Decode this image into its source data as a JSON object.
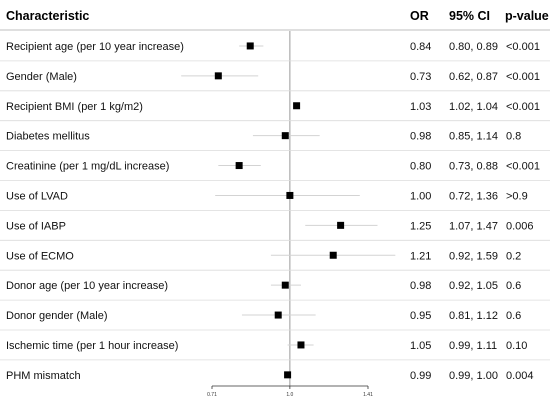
{
  "chart_data": {
    "type": "forest",
    "headers": {
      "characteristic": "Characteristic",
      "or": "OR",
      "ci": "95% CI",
      "p": "p-value"
    },
    "x_scale": "log",
    "xlim": [
      0.71,
      1.41
    ],
    "reference_line": 1.0,
    "x_ticks": [
      {
        "value": 0.71,
        "label": "0.71"
      },
      {
        "value": 1.0,
        "label": "1.0"
      },
      {
        "value": 1.41,
        "label": "1.41"
      }
    ],
    "rows": [
      {
        "label": "Recipient age (per 10 year increase)",
        "or": 0.84,
        "lo": 0.8,
        "hi": 0.89,
        "or_text": "0.84",
        "ci_text": "0.80, 0.89",
        "p_text": "<0.001"
      },
      {
        "label": "Gender (Male)",
        "or": 0.73,
        "lo": 0.62,
        "hi": 0.87,
        "or_text": "0.73",
        "ci_text": "0.62, 0.87",
        "p_text": "<0.001"
      },
      {
        "label": "Recipient BMI (per 1 kg/m2)",
        "or": 1.03,
        "lo": 1.02,
        "hi": 1.04,
        "or_text": "1.03",
        "ci_text": "1.02, 1.04",
        "p_text": "<0.001"
      },
      {
        "label": "Diabetes mellitus",
        "or": 0.98,
        "lo": 0.85,
        "hi": 1.14,
        "or_text": "0.98",
        "ci_text": "0.85, 1.14",
        "p_text": "0.8"
      },
      {
        "label": "Creatinine (per 1 mg/dL increase)",
        "or": 0.8,
        "lo": 0.73,
        "hi": 0.88,
        "or_text": "0.80",
        "ci_text": "0.73, 0.88",
        "p_text": "<0.001"
      },
      {
        "label": "Use of LVAD",
        "or": 1.0,
        "lo": 0.72,
        "hi": 1.36,
        "or_text": "1.00",
        "ci_text": "0.72, 1.36",
        "p_text": ">0.9"
      },
      {
        "label": "Use of IABP",
        "or": 1.25,
        "lo": 1.07,
        "hi": 1.47,
        "or_text": "1.25",
        "ci_text": "1.07, 1.47",
        "p_text": "0.006"
      },
      {
        "label": "Use of ECMO",
        "or": 1.21,
        "lo": 0.92,
        "hi": 1.59,
        "or_text": "1.21",
        "ci_text": "0.92, 1.59",
        "p_text": "0.2"
      },
      {
        "label": "Donor age (per 10 year increase)",
        "or": 0.98,
        "lo": 0.92,
        "hi": 1.05,
        "or_text": "0.98",
        "ci_text": "0.92, 1.05",
        "p_text": "0.6"
      },
      {
        "label": "Donor gender (Male)",
        "or": 0.95,
        "lo": 0.81,
        "hi": 1.12,
        "or_text": "0.95",
        "ci_text": "0.81, 1.12",
        "p_text": "0.6"
      },
      {
        "label": "Ischemic time (per 1 hour increase)",
        "or": 1.05,
        "lo": 0.99,
        "hi": 1.11,
        "or_text": "1.05",
        "ci_text": "0.99, 1.11",
        "p_text": "0.10"
      },
      {
        "label": "PHM mismatch",
        "or": 0.99,
        "lo": 0.99,
        "hi": 1.0,
        "or_text": "0.99",
        "ci_text": "0.99, 1.00",
        "p_text": "0.004"
      }
    ],
    "colors": {
      "marker": "#000000",
      "ci_line": "#d3d3d3",
      "reference_line": "#9a9a9a",
      "row_separator": "#dcdcdc",
      "header_rule": "#bfbfbf",
      "axis": "#333333"
    }
  }
}
